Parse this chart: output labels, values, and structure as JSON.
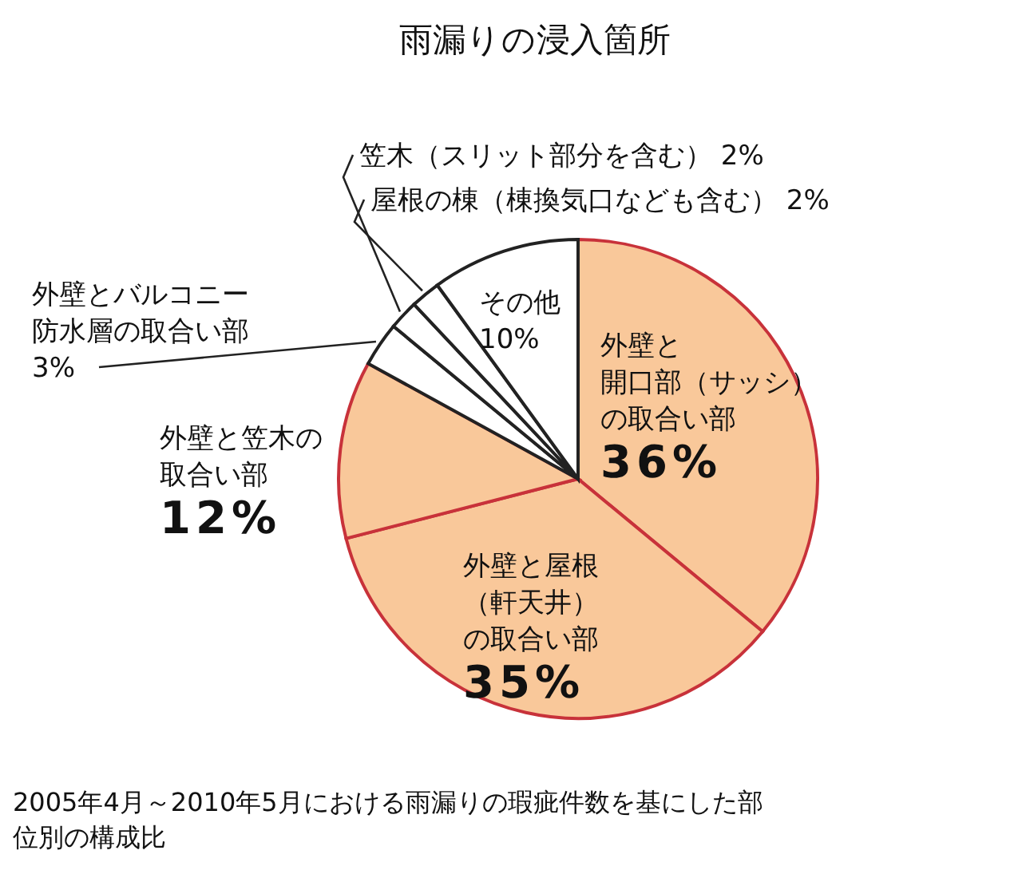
{
  "chart_data": {
    "type": "pie",
    "title": "雨漏りの浸入箇所",
    "categories": [
      "外壁と開口部（サッシ）の取合い部",
      "外壁と屋根（軒天井）の取合い部",
      "外壁と笠木の取合い部",
      "外壁とバルコニー防水層の取合い部",
      "笠木（スリット部分を含む）",
      "屋根の棟（棟換気口なども含む）",
      "その他"
    ],
    "values": [
      36,
      35,
      12,
      3,
      2,
      2,
      10
    ],
    "value_labels": [
      "36%",
      "35%",
      "12%",
      "3%",
      "2%",
      "2%",
      "10%"
    ],
    "colors": [
      "#f9c89a",
      "#f9c89a",
      "#f9c89a",
      "#ffffff",
      "#ffffff",
      "#ffffff",
      "#ffffff"
    ],
    "annotations": [
      "2005年4月～2010年5月における雨漏りの瑕疵件数を基にした部位別の構成比"
    ]
  }
}
